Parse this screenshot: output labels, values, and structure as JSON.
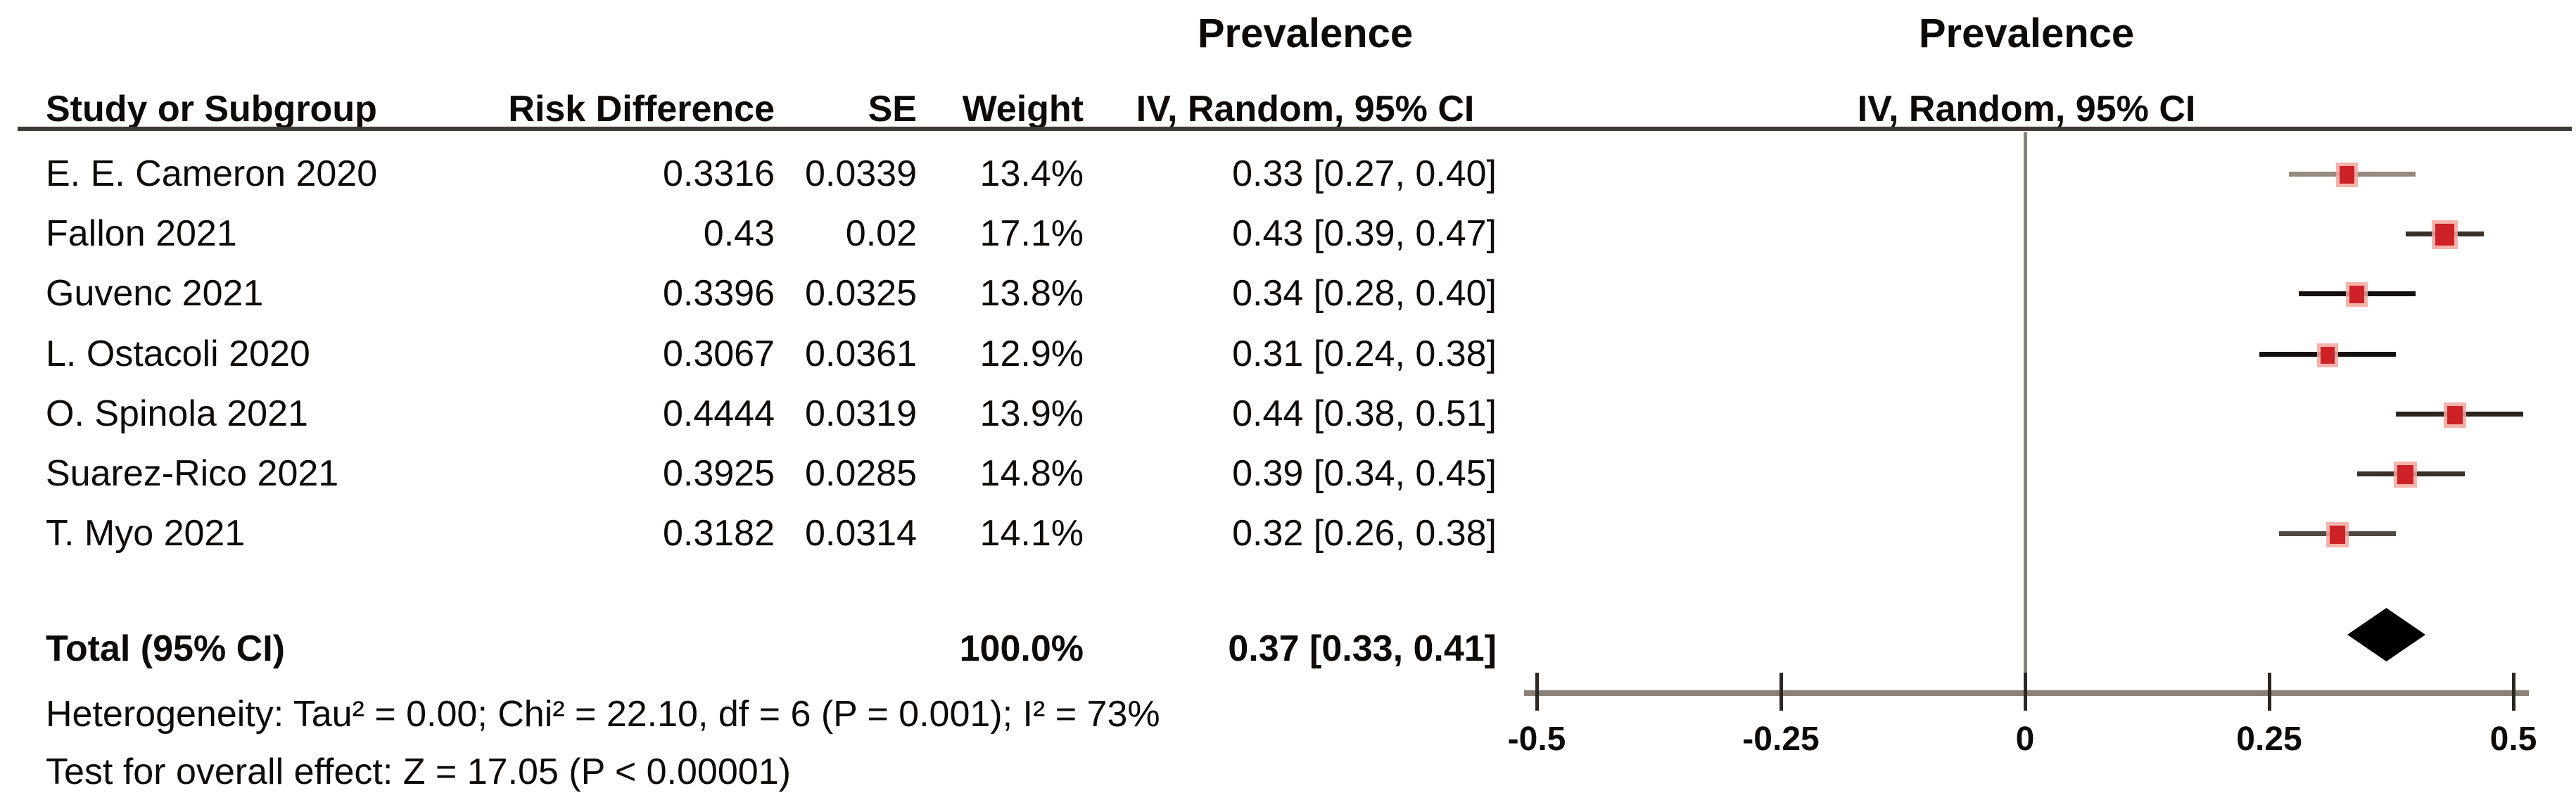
{
  "columns": {
    "study": "Study or Subgroup",
    "risk_difference": "Risk Difference",
    "se": "SE",
    "weight": "Weight",
    "ci": "IV, Random, 95% CI"
  },
  "group_titles": {
    "left": "Prevalence",
    "right": "Prevalence"
  },
  "plot_header": "IV, Random, 95% CI",
  "footer": {
    "heterogeneity": "Heterogeneity: Tau² = 0.00; Chi² = 22.10, df = 6 (P = 0.001); I² = 73%",
    "overall_effect": "Test for overall effect: Z = 17.05 (P < 0.00001)"
  },
  "colors": {
    "square": "#ce2127",
    "square_halo": "#f2a79d",
    "diamond": "#000000",
    "axis": "#8a8076",
    "zero_line": "#8a8076",
    "tick": "#2b2723",
    "header_rule": "#3f3a35",
    "text": "#0d0a08"
  },
  "chart_data": {
    "type": "scatter",
    "subtype": "forest-plot",
    "outcome_title": "Prevalence",
    "effect_measure": "Risk Difference",
    "model": "IV, Random, 95% CI",
    "xlim": [
      -0.5,
      0.5
    ],
    "tick_values": [
      -0.5,
      -0.25,
      0,
      0.25,
      0.5
    ],
    "tick_labels": [
      "-0.5",
      "-0.25",
      "0",
      "0.25",
      "0.5"
    ],
    "grid": false,
    "studies": [
      {
        "name": "E. E. Cameron 2020",
        "risk_difference": "0.3316",
        "se": "0.0339",
        "weight": "13.4%",
        "weight_pct": 13.4,
        "ci_text": "0.33 [0.27, 0.40]",
        "estimate": 0.33,
        "ci_low": 0.27,
        "ci_high": 0.4,
        "line_color": "#958a80"
      },
      {
        "name": "Fallon 2021",
        "risk_difference": "0.43",
        "se": "0.02",
        "weight": "17.1%",
        "weight_pct": 17.1,
        "ci_text": "0.43 [0.39, 0.47]",
        "estimate": 0.43,
        "ci_low": 0.39,
        "ci_high": 0.47,
        "line_color": "#37302b"
      },
      {
        "name": "Guvenc 2021",
        "risk_difference": "0.3396",
        "se": "0.0325",
        "weight": "13.8%",
        "weight_pct": 13.8,
        "ci_text": "0.34 [0.28, 0.40]",
        "estimate": 0.34,
        "ci_low": 0.28,
        "ci_high": 0.4,
        "line_color": "#14100e"
      },
      {
        "name": "L. Ostacoli 2020",
        "risk_difference": "0.3067",
        "se": "0.0361",
        "weight": "12.9%",
        "weight_pct": 12.9,
        "ci_text": "0.31 [0.24, 0.38]",
        "estimate": 0.31,
        "ci_low": 0.24,
        "ci_high": 0.38,
        "line_color": "#14100e"
      },
      {
        "name": "O. Spinola 2021",
        "risk_difference": "0.4444",
        "se": "0.0319",
        "weight": "13.9%",
        "weight_pct": 13.9,
        "ci_text": "0.44 [0.38, 0.51]",
        "estimate": 0.44,
        "ci_low": 0.38,
        "ci_high": 0.51,
        "line_color": "#29231f"
      },
      {
        "name": "Suarez-Rico 2021",
        "risk_difference": "0.3925",
        "se": "0.0285",
        "weight": "14.8%",
        "weight_pct": 14.8,
        "ci_text": "0.39 [0.34, 0.45]",
        "estimate": 0.39,
        "ci_low": 0.34,
        "ci_high": 0.45,
        "line_color": "#37302b"
      },
      {
        "name": "T. Myo 2021",
        "risk_difference": "0.3182",
        "se": "0.0314",
        "weight": "14.1%",
        "weight_pct": 14.1,
        "ci_text": "0.32 [0.26, 0.38]",
        "estimate": 0.32,
        "ci_low": 0.26,
        "ci_high": 0.38,
        "line_color": "#4f4943"
      }
    ],
    "total": {
      "label": "Total (95% CI)",
      "weight": "100.0%",
      "ci_text": "0.37 [0.33, 0.41]",
      "estimate": 0.37,
      "ci_low": 0.33,
      "ci_high": 0.41
    }
  }
}
